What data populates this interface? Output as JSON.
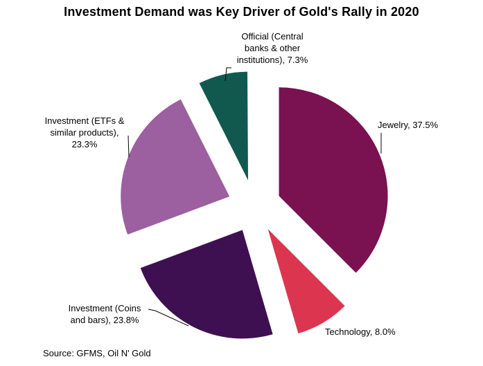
{
  "chart_data": {
    "type": "pie",
    "title": "Investment Demand was Key Driver of Gold's Rally in 2020",
    "source": "Source: GFMS, Oil N' Gold",
    "start_angle_deg": 0,
    "direction": "clockwise",
    "explode_ratio": 0.245,
    "legend_position": "none",
    "slices": [
      {
        "label": "Jewelry",
        "value": 37.5,
        "color": "#7A1150",
        "display_label": "Jewelry, 37.5%"
      },
      {
        "label": "Technology",
        "value": 8.0,
        "color": "#DC3550",
        "display_label": "Technology, 8.0%"
      },
      {
        "label": "Investment (Coins and bars)",
        "value": 23.8,
        "color": "#3F1051",
        "display_label": "Investment (Coins\nand bars), 23.8%"
      },
      {
        "label": "Investment (ETFs & similar products)",
        "value": 23.3,
        "color": "#9C5F9F",
        "display_label": "Investment (ETFs &\nsimilar products),\n23.3%"
      },
      {
        "label": "Official (Central banks & other institutions)",
        "value": 7.3,
        "color": "#11594F",
        "display_label": "Official (Central\nbanks & other\ninstitutions), 7.3%"
      }
    ]
  }
}
